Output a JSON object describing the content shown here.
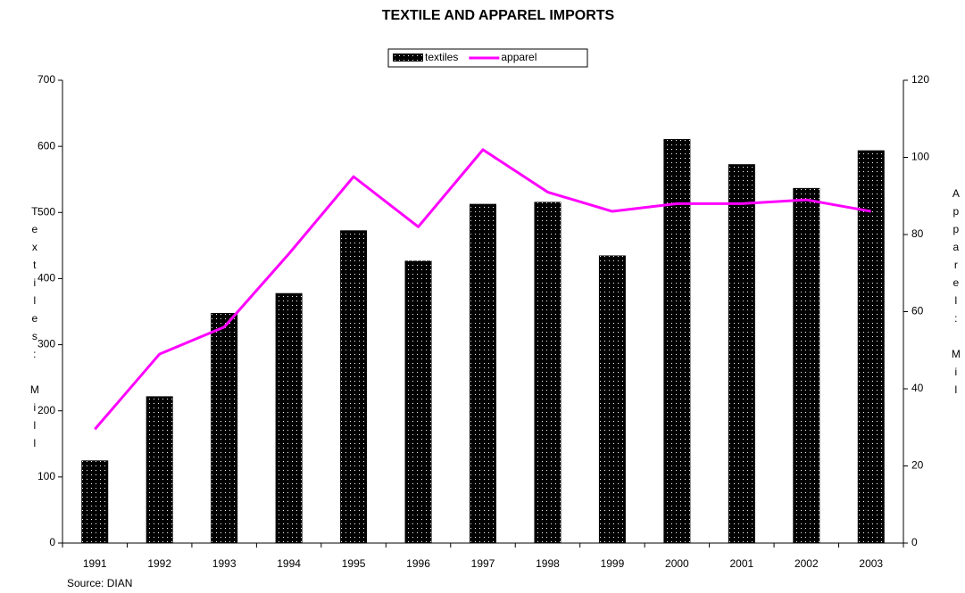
{
  "chart_data": {
    "type": "bar",
    "title": "TEXTILE AND APPAREL IMPORTS",
    "categories": [
      "1991",
      "1992",
      "1993",
      "1994",
      "1995",
      "1996",
      "1997",
      "1998",
      "1999",
      "2000",
      "2001",
      "2002",
      "2003"
    ],
    "series": [
      {
        "name": "textiles",
        "type": "bar",
        "color": "#000000",
        "values": [
          125,
          222,
          348,
          378,
          473,
          427,
          513,
          516,
          435,
          611,
          573,
          537,
          594
        ]
      },
      {
        "name": "apparel",
        "type": "line",
        "axis": "y2",
        "color": "#ff00ff",
        "values": [
          29.5,
          49,
          56,
          75,
          95,
          82,
          102,
          91,
          86,
          88,
          88,
          89,
          86
        ]
      }
    ],
    "ylabel": "Textiles: Mill",
    "y2label": "Apparel: Mil",
    "ylim": [
      0,
      700
    ],
    "yticks": [
      0,
      100,
      200,
      300,
      400,
      500,
      600,
      700
    ],
    "y2lim": [
      0,
      120
    ],
    "y2ticks": [
      0,
      20,
      40,
      60,
      80,
      100,
      120
    ],
    "grid": false,
    "legend": "top",
    "source": "Source: DIAN"
  }
}
